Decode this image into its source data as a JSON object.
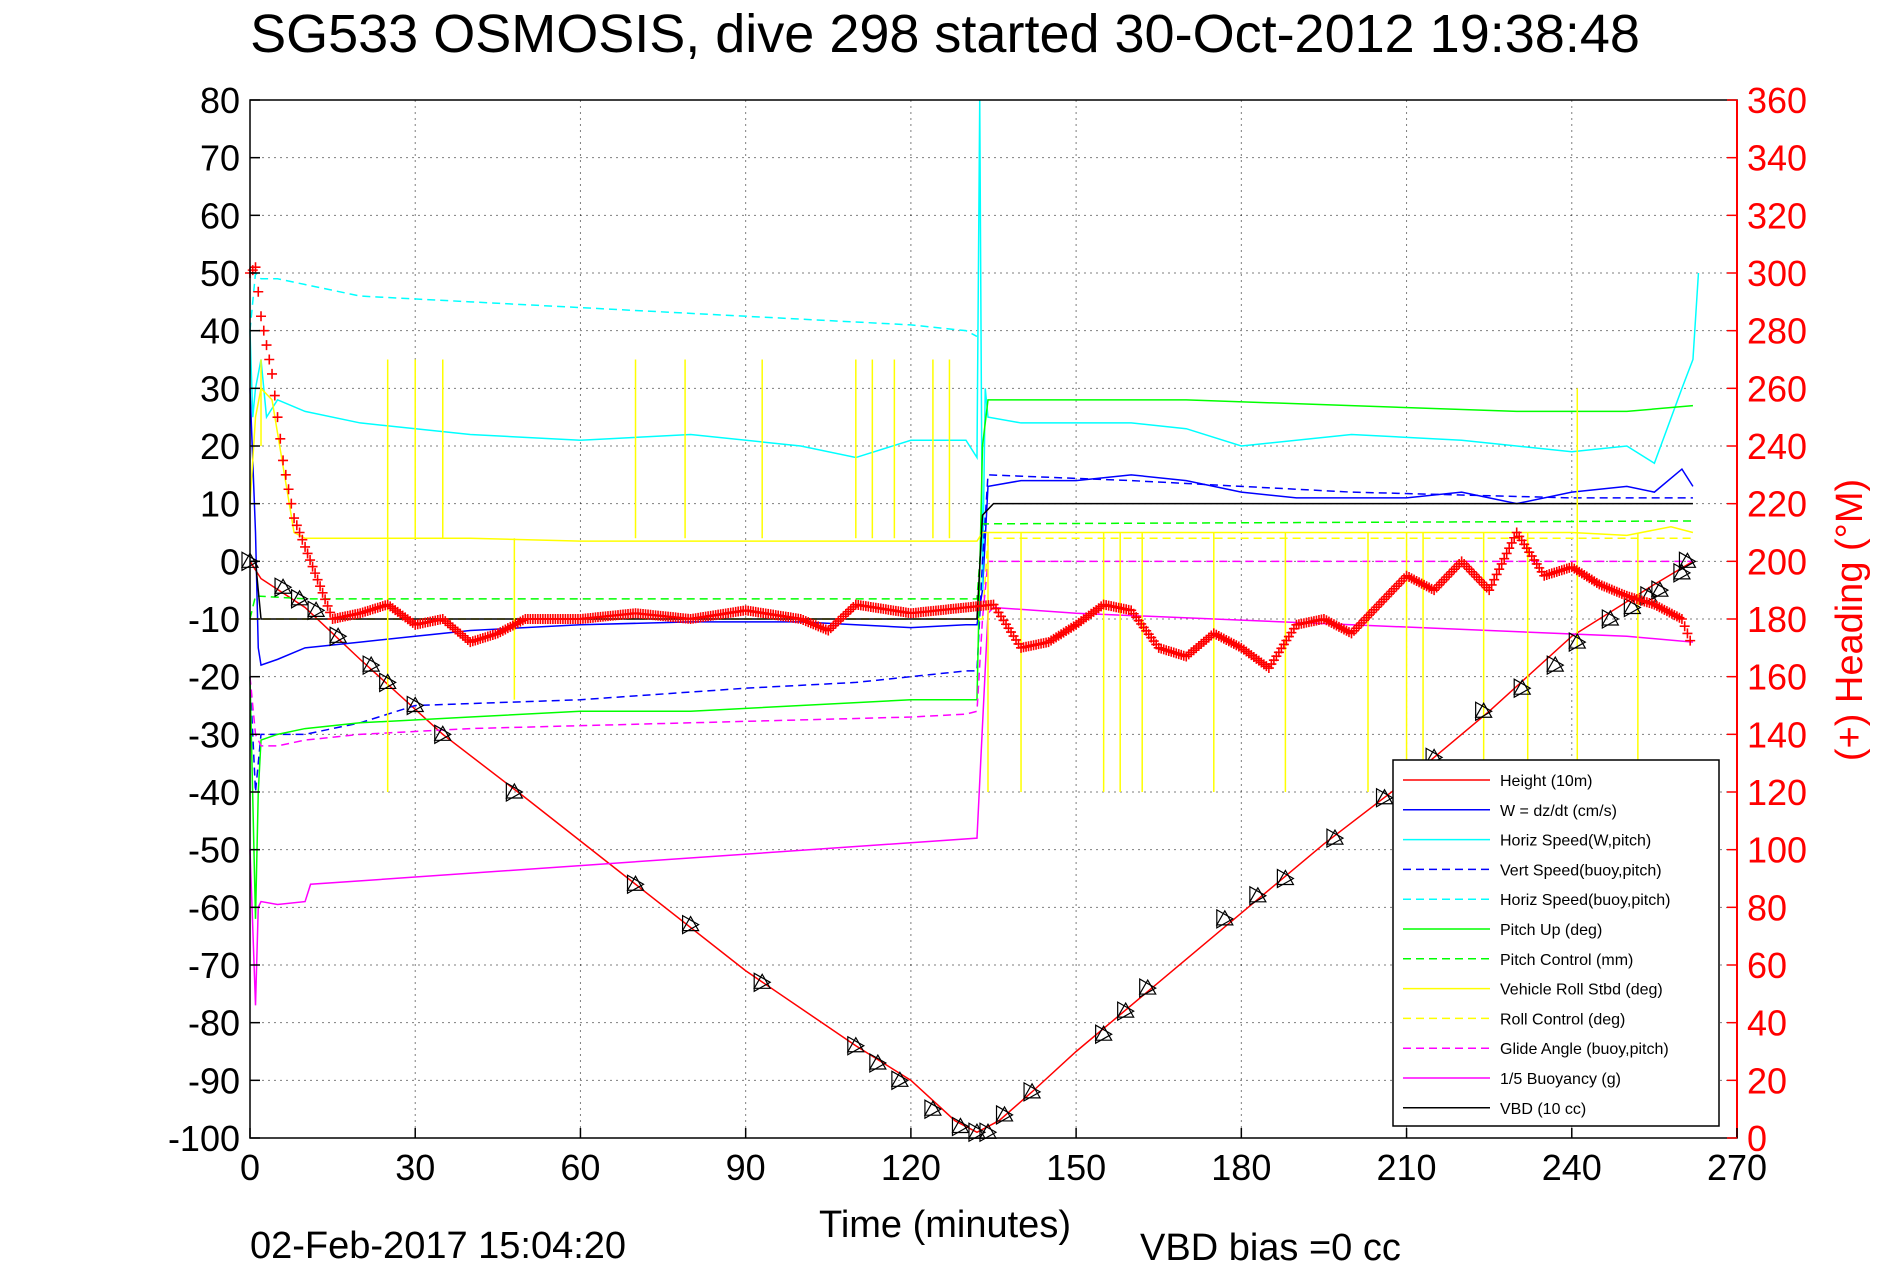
{
  "chart_data": {
    "type": "line",
    "title": "SG533 OSMOSIS, dive 298 started 30-Oct-2012 19:38:48",
    "xlabel": "Time (minutes)",
    "ylabel_right": "(+) Heading (°M)",
    "footer_date": "02-Feb-2017 15:04:20",
    "footer_vbd": "VBD bias =0 cc",
    "xlim": [
      0,
      270
    ],
    "ylim_left": [
      -100,
      80
    ],
    "ylim_right": [
      0,
      360
    ],
    "x_ticks": [
      0,
      30,
      60,
      90,
      120,
      150,
      180,
      210,
      240,
      270
    ],
    "y_ticks_left": [
      -100,
      -90,
      -80,
      -70,
      -60,
      -50,
      -40,
      -30,
      -20,
      -10,
      0,
      10,
      20,
      30,
      40,
      50,
      60,
      70,
      80
    ],
    "y_ticks_right": [
      0,
      20,
      40,
      60,
      80,
      100,
      120,
      140,
      160,
      180,
      200,
      220,
      240,
      260,
      280,
      300,
      320,
      340,
      360
    ],
    "grid": true,
    "legend_position": "bottom-right",
    "colors": {
      "red": "#ff0000",
      "blue": "#0000ff",
      "cyan": "#00ffff",
      "green": "#00ff00",
      "yellow": "#ffff00",
      "magenta": "#ff00ff",
      "black": "#000000"
    },
    "series": [
      {
        "name": "Height (10m)",
        "color": "#ff0000",
        "style": "solid",
        "x": [
          0,
          2,
          10,
          20,
          35,
          50,
          70,
          90,
          110,
          120,
          128,
          132,
          136,
          142,
          150,
          165,
          180,
          195,
          210,
          225,
          240,
          255,
          262
        ],
        "y": [
          0,
          -3,
          -8,
          -17,
          -30,
          -41,
          -56,
          -71,
          -84,
          -90,
          -97,
          -99,
          -97,
          -92,
          -85,
          -73,
          -61,
          -49,
          -38,
          -26,
          -13,
          -4,
          0
        ]
      },
      {
        "name": "W = dz/dt (cm/s)",
        "color": "#0000ff",
        "style": "solid",
        "x": [
          0,
          1,
          1.5,
          2,
          5,
          10,
          20,
          30,
          40,
          60,
          80,
          100,
          110,
          120,
          130,
          132,
          133,
          134,
          140,
          150,
          160,
          170,
          180,
          190,
          200,
          210,
          220,
          230,
          240,
          250,
          255,
          260,
          262
        ],
        "y": [
          30,
          5,
          -15,
          -18,
          -17,
          -15,
          -14,
          -13,
          -12,
          -11,
          -10.5,
          -10.5,
          -11,
          -11.5,
          -11,
          -11,
          -5,
          13,
          14,
          14,
          15,
          14,
          12,
          11,
          11,
          11,
          12,
          10,
          12,
          13,
          12,
          16,
          13
        ]
      },
      {
        "name": "Horiz Speed(W,pitch)",
        "color": "#00ffff",
        "style": "solid",
        "x": [
          0,
          0.5,
          1,
          2,
          3,
          5,
          10,
          20,
          40,
          60,
          80,
          100,
          110,
          120,
          130,
          132,
          132.5,
          133,
          133.5,
          134,
          140,
          150,
          160,
          170,
          180,
          200,
          220,
          240,
          250,
          255,
          260,
          262,
          263
        ],
        "y": [
          40,
          25,
          30,
          35,
          25,
          28,
          26,
          24,
          22,
          21,
          22,
          20,
          18,
          21,
          21,
          18,
          80,
          -5,
          30,
          25,
          24,
          24,
          24,
          23,
          20,
          22,
          21,
          19,
          20,
          17,
          30,
          35,
          50
        ]
      },
      {
        "name": "Vert Speed(buoy,pitch)",
        "color": "#0000ff",
        "style": "dashed",
        "x": [
          0,
          1,
          2,
          5,
          10,
          20,
          30,
          60,
          90,
          110,
          120,
          130,
          132,
          133,
          134,
          160,
          200,
          240,
          262
        ],
        "y": [
          -20,
          -40,
          -30,
          -30,
          -30,
          -28,
          -25,
          -24,
          -22,
          -21,
          -20,
          -19,
          -19,
          0,
          15,
          14,
          12,
          11,
          11
        ]
      },
      {
        "name": "Horiz Speed(buoy,pitch)",
        "color": "#00ffff",
        "style": "dashed",
        "x": [
          0,
          1,
          2,
          5,
          10,
          20,
          40,
          60,
          80,
          100,
          120,
          130,
          132
        ],
        "y": [
          40,
          50,
          49,
          49,
          48,
          46,
          45,
          44,
          43,
          42,
          41,
          40,
          39
        ]
      },
      {
        "name": "Pitch Up (deg)",
        "color": "#00ff00",
        "style": "solid",
        "x": [
          0,
          1,
          1.5,
          2,
          5,
          10,
          20,
          40,
          60,
          80,
          100,
          120,
          130,
          132,
          133,
          134,
          150,
          170,
          200,
          230,
          250,
          262
        ],
        "y": [
          -20,
          -62,
          -40,
          -31,
          -30,
          -29,
          -28,
          -27,
          -26,
          -26,
          -25,
          -24,
          -24,
          -24,
          20,
          28,
          28,
          28,
          27,
          26,
          26,
          27
        ]
      },
      {
        "name": "Pitch Control (mm)",
        "color": "#00ff00",
        "style": "dashed",
        "x": [
          0,
          1,
          10,
          132,
          133,
          262
        ],
        "y": [
          -10,
          -6,
          -6.5,
          -6.5,
          6.5,
          7
        ]
      },
      {
        "name": "Vehicle Roll Stbd (deg)",
        "color": "#ffff00",
        "style": "solid",
        "x": [
          0,
          1,
          2,
          4,
          8,
          10,
          20,
          40,
          60,
          80,
          100,
          120,
          130,
          132,
          133,
          134,
          150,
          180,
          210,
          240,
          250,
          258,
          262
        ],
        "y": [
          10,
          25,
          30,
          28,
          5,
          4,
          4,
          4,
          3.5,
          3.5,
          3.5,
          3.5,
          3.5,
          3.5,
          5,
          5,
          5,
          5,
          5,
          5,
          4.5,
          6,
          5
        ]
      },
      {
        "name": "Roll Control (deg)",
        "color": "#ffff00",
        "style": "dashed",
        "x": [
          0,
          133,
          134,
          262
        ],
        "y": [
          -10,
          -10,
          4,
          4
        ]
      },
      {
        "name": "Glide Angle (buoy,pitch)",
        "color": "#ff00ff",
        "style": "dashed",
        "x": [
          0,
          1,
          2,
          5,
          10,
          20,
          40,
          60,
          80,
          100,
          120,
          130,
          132,
          133,
          134,
          262
        ],
        "y": [
          -20,
          -30,
          -32,
          -32,
          -31,
          -30,
          -29,
          -28.5,
          -28,
          -27.5,
          -27,
          -26.5,
          -26,
          -10,
          0,
          0
        ]
      },
      {
        "name": "1/5 Buoyancy (g)",
        "color": "#ff00ff",
        "style": "solid",
        "x": [
          0,
          1,
          1.5,
          2,
          5,
          10,
          11,
          132,
          134,
          135,
          150,
          200,
          250,
          262
        ],
        "y": [
          -50,
          -77,
          -60,
          -59,
          -59.5,
          -59,
          -56,
          -48,
          -9,
          -8,
          -9,
          -11,
          -13,
          -14
        ]
      },
      {
        "name": "VBD (10 cc)",
        "color": "#000000",
        "style": "solid",
        "x": [
          0,
          1,
          2,
          3,
          132,
          133,
          135,
          262
        ],
        "y": [
          0,
          0,
          -10,
          -10,
          -10,
          8,
          10,
          10
        ]
      },
      {
        "name": "Heading",
        "axis": "right",
        "color": "#ff0000",
        "style": "marker-plus",
        "x": [
          0,
          1,
          2,
          3,
          4,
          5,
          6,
          7,
          8,
          9,
          10,
          15,
          20,
          25,
          30,
          35,
          40,
          45,
          50,
          60,
          70,
          80,
          90,
          100,
          105,
          110,
          120,
          130,
          135,
          140,
          145,
          150,
          155,
          160,
          165,
          170,
          175,
          180,
          185,
          190,
          195,
          200,
          205,
          210,
          215,
          220,
          225,
          230,
          235,
          240,
          245,
          250,
          255,
          260,
          262
        ],
        "y": [
          300,
          302,
          285,
          275,
          265,
          250,
          235,
          225,
          215,
          210,
          205,
          180,
          182,
          185,
          178,
          180,
          172,
          175,
          180,
          180,
          182,
          180,
          183,
          180,
          176,
          185,
          182,
          184,
          185,
          170,
          172,
          178,
          185,
          183,
          170,
          167,
          175,
          170,
          163,
          178,
          180,
          175,
          185,
          195,
          190,
          200,
          190,
          210,
          195,
          198,
          192,
          188,
          185,
          180,
          170
        ]
      }
    ],
    "markers": {
      "name": "Height sample markers",
      "color": "#000000",
      "x": [
        0,
        6,
        9,
        12,
        16,
        22,
        25,
        30,
        35,
        48,
        70,
        80,
        93,
        110,
        114,
        118,
        124,
        129,
        132,
        134,
        137,
        142,
        155,
        159,
        163,
        177,
        183,
        188,
        197,
        206,
        215,
        224,
        231,
        237,
        241,
        247,
        251,
        254,
        256,
        260,
        261
      ],
      "y": [
        0,
        -4.5,
        -6.5,
        -8.5,
        -13,
        -18,
        -21,
        -25,
        -30,
        -40,
        -56,
        -63,
        -73,
        -84,
        -87,
        -90,
        -95,
        -98,
        -99,
        -99,
        -96,
        -92,
        -82,
        -78,
        -74,
        -62,
        -58,
        -55,
        -48,
        -41,
        -34,
        -26,
        -22,
        -18,
        -14,
        -10,
        -8,
        -6,
        -5,
        -2,
        0
      ]
    },
    "roll_spikes": [
      {
        "x": 2,
        "top": 35,
        "bottom": 20
      },
      {
        "x": 25,
        "top": 35,
        "bottom": 4
      },
      {
        "x": 30,
        "top": 35,
        "bottom": 4
      },
      {
        "x": 35,
        "top": 35,
        "bottom": 4
      },
      {
        "x": 70,
        "top": 35,
        "bottom": 4
      },
      {
        "x": 79,
        "top": 35,
        "bottom": 4
      },
      {
        "x": 93,
        "top": 35,
        "bottom": 4
      },
      {
        "x": 110,
        "top": 35,
        "bottom": 4
      },
      {
        "x": 113,
        "top": 35,
        "bottom": 4
      },
      {
        "x": 117,
        "top": 35,
        "bottom": 4
      },
      {
        "x": 124,
        "top": 35,
        "bottom": 4
      },
      {
        "x": 127,
        "top": 35,
        "bottom": 4
      },
      {
        "x": 25,
        "top": 4,
        "bottom": -40
      },
      {
        "x": 48,
        "top": 4,
        "bottom": -24
      },
      {
        "x": 134,
        "top": 5,
        "bottom": -40
      },
      {
        "x": 140,
        "top": 5,
        "bottom": -40
      },
      {
        "x": 155,
        "top": 5,
        "bottom": -40
      },
      {
        "x": 158,
        "top": 5,
        "bottom": -40
      },
      {
        "x": 162,
        "top": 5,
        "bottom": -40
      },
      {
        "x": 175,
        "top": 5,
        "bottom": -40
      },
      {
        "x": 188,
        "top": 5,
        "bottom": -40
      },
      {
        "x": 203,
        "top": 5,
        "bottom": -40
      },
      {
        "x": 210,
        "top": 5,
        "bottom": -40
      },
      {
        "x": 213,
        "top": 5,
        "bottom": -40
      },
      {
        "x": 224,
        "top": 5,
        "bottom": -40
      },
      {
        "x": 232,
        "top": 5,
        "bottom": -40
      },
      {
        "x": 241,
        "top": 30,
        "bottom": -40
      },
      {
        "x": 252,
        "top": 5,
        "bottom": -40
      }
    ]
  }
}
